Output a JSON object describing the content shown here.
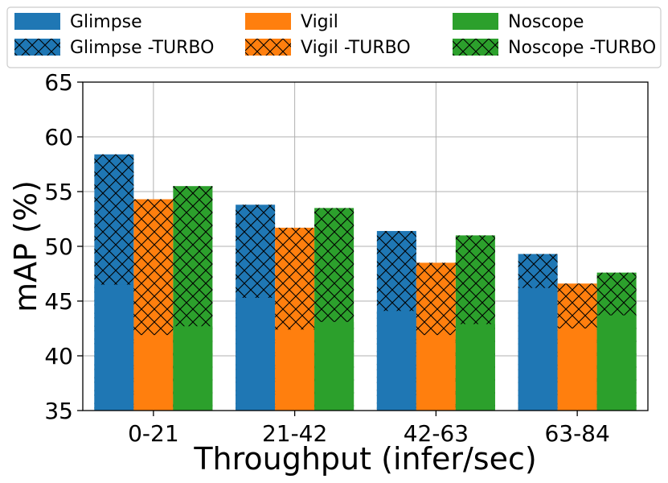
{
  "chart_data": {
    "type": "bar",
    "title": "",
    "xlabel": "Throughput (infer/sec)",
    "ylabel": "mAP (%)",
    "ylim": [
      35,
      65
    ],
    "yticks": [
      35,
      40,
      45,
      50,
      55,
      60,
      65
    ],
    "grid": true,
    "legend_position": "top",
    "categories": [
      "0-21",
      "21-42",
      "42-63",
      "63-84"
    ],
    "series": [
      {
        "name": "Glimpse",
        "color": "#1f77b4",
        "hatched": false,
        "values": [
          46.5,
          45.3,
          44.1,
          46.2
        ]
      },
      {
        "name": "Vigil",
        "color": "#ff7f0e",
        "hatched": false,
        "values": [
          41.9,
          42.4,
          41.9,
          42.5
        ]
      },
      {
        "name": "Noscope",
        "color": "#2ca02c",
        "hatched": false,
        "values": [
          42.7,
          43.1,
          42.9,
          43.7
        ]
      },
      {
        "name": "Glimpse -TURBO",
        "color": "#1f77b4",
        "hatched": true,
        "values": [
          58.4,
          53.8,
          51.4,
          49.3
        ]
      },
      {
        "name": "Vigil -TURBO",
        "color": "#ff7f0e",
        "hatched": true,
        "values": [
          54.3,
          51.7,
          48.5,
          46.6
        ]
      },
      {
        "name": "Noscope -TURBO",
        "color": "#2ca02c",
        "hatched": true,
        "values": [
          55.5,
          53.5,
          51.0,
          47.6
        ]
      }
    ]
  }
}
